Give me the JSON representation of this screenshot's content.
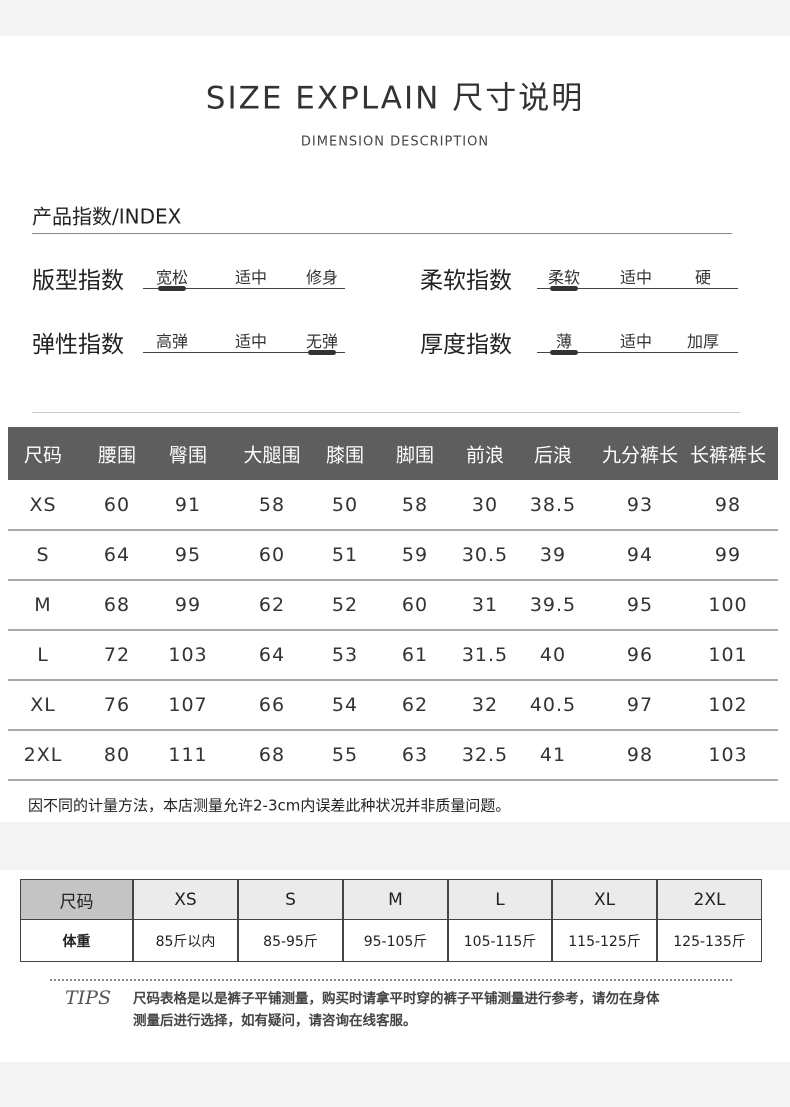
{
  "header": {
    "title": "SIZE EXPLAIN 尺寸说明",
    "subtitle": "DIMENSION DESCRIPTION"
  },
  "index": {
    "title": "产品指数/INDEX",
    "scales": [
      {
        "label": "版型指数",
        "options": [
          "宽松",
          "适中",
          "修身"
        ],
        "selected": 0
      },
      {
        "label": "柔软指数",
        "options": [
          "柔软",
          "适中",
          "硬"
        ],
        "selected": 0
      },
      {
        "label": "弹性指数",
        "options": [
          "高弹",
          "适中",
          "无弹"
        ],
        "selected": 2
      },
      {
        "label": "厚度指数",
        "options": [
          "薄",
          "适中",
          "加厚"
        ],
        "selected": 0
      }
    ]
  },
  "size_table": {
    "header": [
      "尺码",
      "腰围",
      "臀围",
      "大腿围",
      "膝围",
      "脚围",
      "前浪",
      "后浪",
      "九分裤长",
      "长裤裤长"
    ],
    "rows": [
      [
        "XS",
        60,
        91,
        58,
        50,
        58,
        30,
        38.5,
        93,
        98
      ],
      [
        "S",
        64,
        95,
        60,
        51,
        59,
        30.5,
        39,
        94,
        99
      ],
      [
        "M",
        68,
        99,
        62,
        52,
        60,
        31,
        39.5,
        95,
        100
      ],
      [
        "L",
        72,
        103,
        64,
        53,
        61,
        31.5,
        40,
        96,
        101
      ],
      [
        "XL",
        76,
        107,
        66,
        54,
        62,
        32,
        40.5,
        97,
        102
      ],
      [
        "2XL",
        80,
        111,
        68,
        55,
        63,
        32.5,
        41,
        98,
        103
      ]
    ],
    "note": "因不同的计量方法，本店测量允许2-3cm内误差此种状况并非质量问题。"
  },
  "weight_table": {
    "header": [
      "尺码",
      "XS",
      "S",
      "M",
      "L",
      "XL",
      "2XL"
    ],
    "row": [
      "体重",
      "85斤以内",
      "85-95斤",
      "95-105斤",
      "105-115斤",
      "115-125斤",
      "125-135斤"
    ]
  },
  "tips": {
    "label": "TIPS",
    "lines": [
      "尺码表格是以是裤子平铺测量，购买时请拿平时穿的裤子平铺测量进行参考，请勿在身体",
      "测量后进行选择，如有疑问，请咨询在线客服。"
    ]
  }
}
